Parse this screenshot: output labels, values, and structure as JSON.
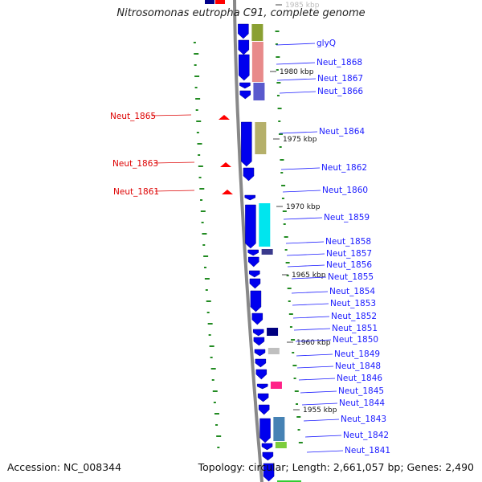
{
  "title": "Nitrosomonas eutropha C91, complete genome",
  "footer": {
    "accession": "Accession: NC_008344",
    "summary": "Topology: circular; Length: 2,661,057 bp; Genes: 2,490"
  },
  "colors": {
    "forward_gene": "#ff0000",
    "reverse_gene": "#0000ee",
    "label_blue": "#1a1aff",
    "gc_skew": "#228b22",
    "backbone": "#888888"
  },
  "ruler_ticks": [
    "1985 kbp",
    "1980 kbp",
    "1975 kbp",
    "1970 kbp",
    "1965 kbp",
    "1960 kbp",
    "1955 kbp"
  ],
  "forward_genes": [
    "Neut_1865",
    "Neut_1863",
    "Neut_1861"
  ],
  "reverse_genes": [
    "glyQ",
    "Neut_1868",
    "Neut_1867",
    "Neut_1866",
    "Neut_1864",
    "Neut_1862",
    "Neut_1860",
    "Neut_1859",
    "Neut_1858",
    "Neut_1857",
    "Neut_1856",
    "Neut_1855",
    "Neut_1854",
    "Neut_1853",
    "Neut_1852",
    "Neut_1851",
    "Neut_1850",
    "Neut_1849",
    "Neut_1848",
    "Neut_1846",
    "Neut_1845",
    "Neut_1844",
    "Neut_1843",
    "Neut_1842",
    "Neut_1841"
  ]
}
